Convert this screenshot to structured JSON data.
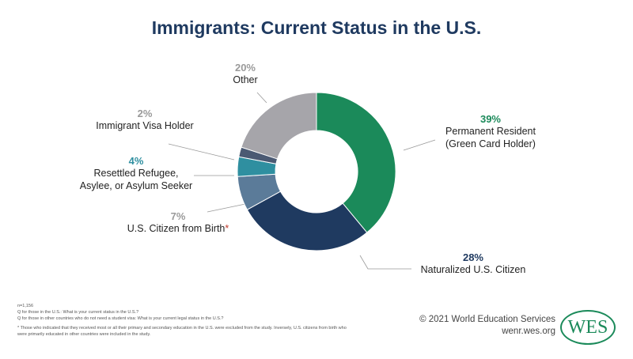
{
  "chart_data": {
    "type": "donut",
    "title": "Immigrants: Current Status in the U.S.",
    "categories": [
      "Permanent Resident\n(Green Card Holder)",
      "Naturalized U.S. Citizen",
      "U.S. Citizen from Birth",
      "Resettled Refugee,\nAsylee, or Asylum Seeker",
      "Immigrant Visa Holder",
      "Other"
    ],
    "values": [
      39,
      28,
      7,
      4,
      2,
      20
    ],
    "value_labels": [
      "39%",
      "28%",
      "7%",
      "4%",
      "2%",
      "20%"
    ],
    "colors": [
      "#1b8a5a",
      "#1f3a60",
      "#5b7b99",
      "#2f8fa0",
      "#4b5a73",
      "#a6a5aa"
    ],
    "value_label_colors": [
      "#1b8a5a",
      "#1f3a60",
      "#9a9a9a",
      "#2f8fa0",
      "#9a9a9a",
      "#9a9a9a"
    ],
    "footnote_marker": "*"
  },
  "footer": {
    "notes": [
      "n=1,156",
      "Q for those in the U.S.: What is your current status in the U.S.?",
      "Q for those in other countries who do not need a student visa: What is your current legal status in the U.S.?",
      "* Those who indicated that they received most or all their primary and secondary education in the U.S. were excluded from the study. Inversely, U.S. citizens from birth who were primarily educated in other countries were included in the study."
    ],
    "copyright": "© 2021 World Education Services",
    "site": "wenr.wes.org",
    "logo": "WES"
  }
}
